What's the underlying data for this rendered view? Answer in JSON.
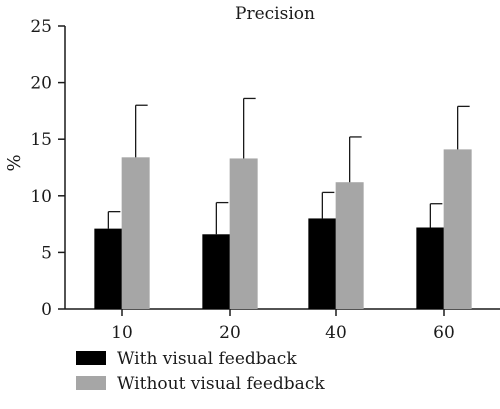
{
  "chart_data": {
    "type": "bar",
    "title": "Precision",
    "xlabel": "",
    "ylabel": "%",
    "ylim": [
      0,
      25
    ],
    "yticks": [
      0,
      5,
      10,
      15,
      20,
      25
    ],
    "categories": [
      "10",
      "20",
      "40",
      "60"
    ],
    "series": [
      {
        "name": "With visual feedback",
        "color": "#000000",
        "values": [
          7.1,
          6.6,
          8.0,
          7.2
        ],
        "error": [
          1.5,
          2.8,
          2.3,
          2.1
        ]
      },
      {
        "name": "Without visual feedback",
        "color": "#a6a6a6",
        "values": [
          13.4,
          13.3,
          11.2,
          14.1
        ],
        "error": [
          4.6,
          5.3,
          4.0,
          3.8
        ]
      }
    ],
    "legend_position": "bottom-left",
    "grid": false
  }
}
